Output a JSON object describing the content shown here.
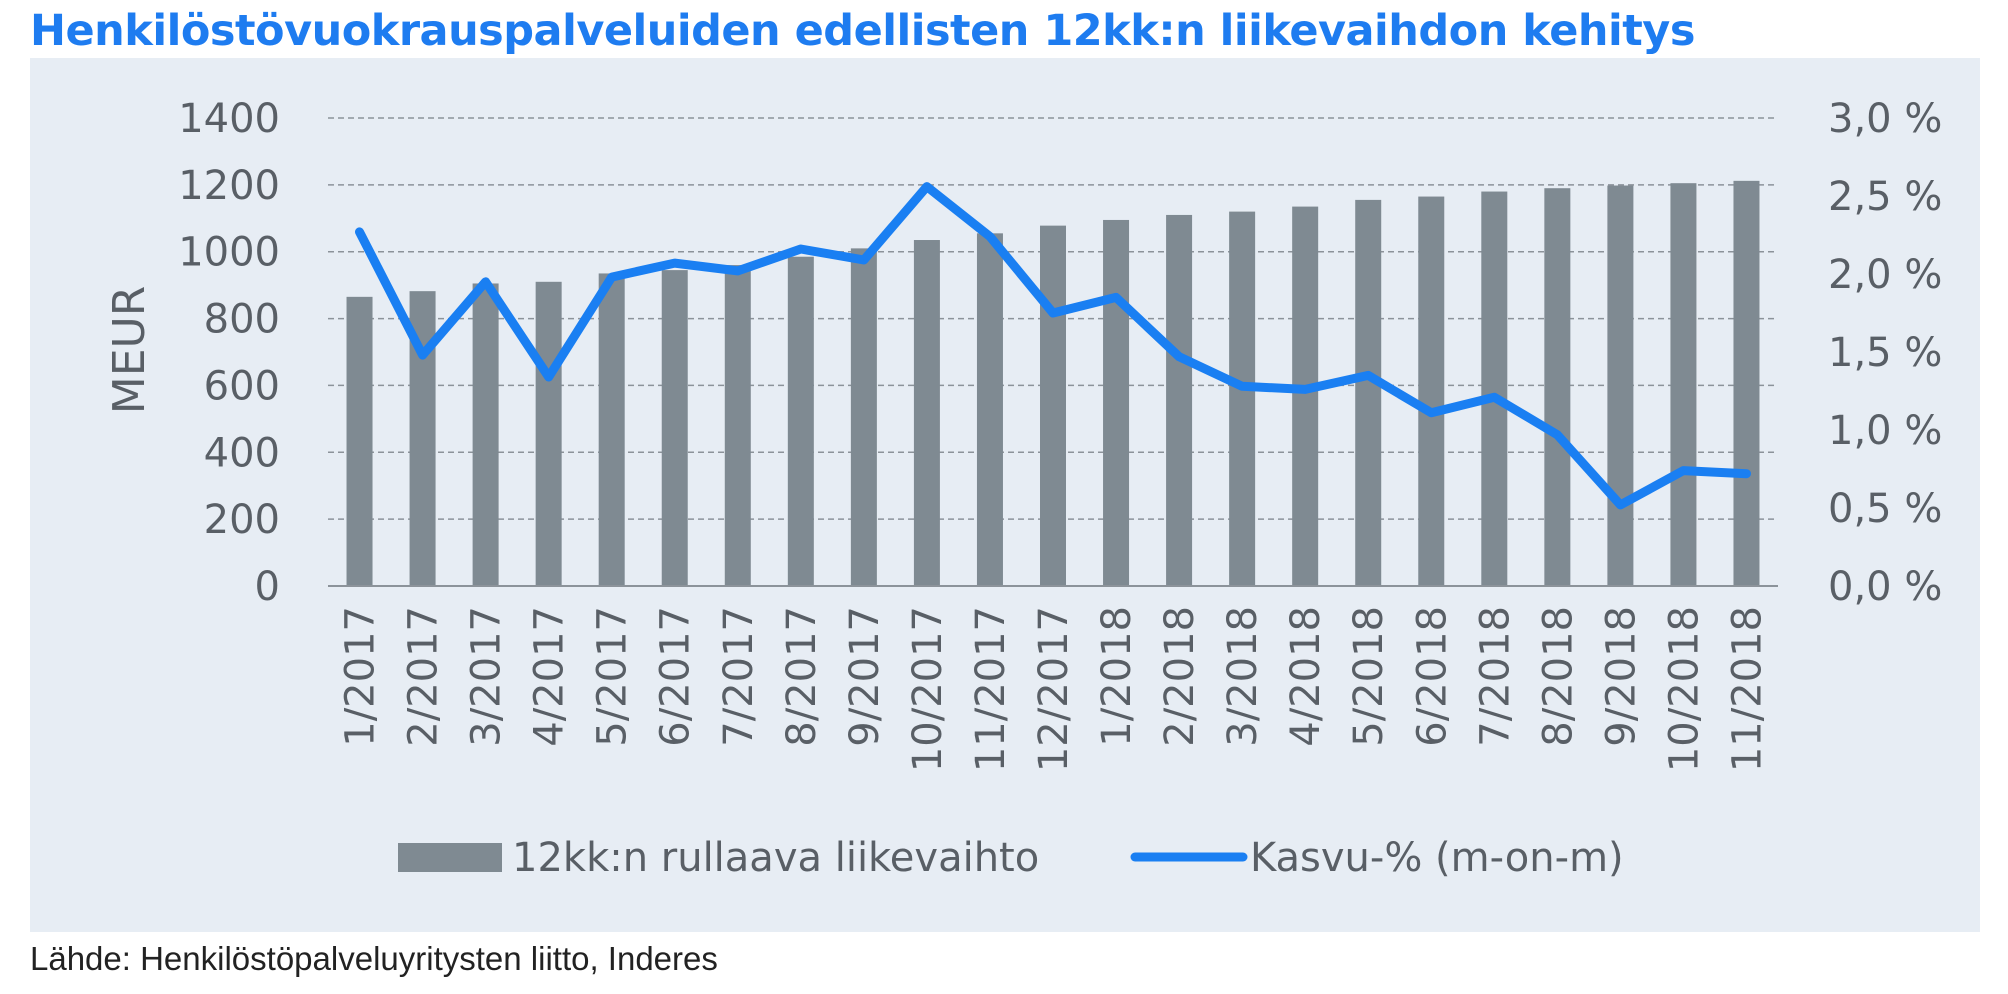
{
  "title": "Henkilöstövuokrauspalveluiden edellisten 12kk:n liikevaihdon kehitys",
  "source": "Lähde: Henkilöstöpalveluyritysten liitto, Inderes",
  "colors": {
    "bar": "#7f8a92",
    "line": "#1a7ff2",
    "panel": "#e7edf4",
    "grid": "#8c939a",
    "title": "#1e7cf0"
  },
  "chart_data": {
    "type": "bar+line",
    "title": "Henkilöstövuokrauspalveluiden edellisten 12kk:n liikevaihdon kehitys",
    "ylabel": "MEUR",
    "ylim": [
      0,
      1400
    ],
    "y_ticks": [
      "0",
      "200",
      "400",
      "600",
      "800",
      "1000",
      "1200",
      "1400"
    ],
    "y2lim": [
      0,
      3.0
    ],
    "y2_ticks": [
      "0,0 %",
      "0,5 %",
      "1,0 %",
      "1,5 %",
      "2,0 %",
      "2,5 %",
      "3,0 %"
    ],
    "categories": [
      "1/2017",
      "2/2017",
      "3/2017",
      "4/2017",
      "5/2017",
      "6/2017",
      "7/2017",
      "8/2017",
      "9/2017",
      "10/2017",
      "11/2017",
      "12/2017",
      "1/2018",
      "2/2018",
      "3/2018",
      "4/2018",
      "5/2018",
      "6/2018",
      "7/2018",
      "8/2018",
      "9/2018",
      "10/2018",
      "11/2018"
    ],
    "series": [
      {
        "name": "12kk:n rullaava liikevaihto",
        "type": "bar",
        "axis": "left",
        "values": [
          865,
          882,
          905,
          910,
          935,
          945,
          960,
          985,
          1010,
          1035,
          1055,
          1078,
          1095,
          1110,
          1120,
          1135,
          1155,
          1165,
          1180,
          1190,
          1198,
          1205,
          1212
        ]
      },
      {
        "name": "Kasvu-% (m-on-m)",
        "type": "line",
        "axis": "right",
        "values": [
          2.27,
          1.48,
          1.95,
          1.34,
          1.98,
          2.07,
          2.02,
          2.16,
          2.09,
          2.56,
          2.24,
          1.75,
          1.85,
          1.47,
          1.28,
          1.26,
          1.35,
          1.11,
          1.21,
          0.97,
          0.52,
          0.74,
          0.72
        ]
      }
    ],
    "grid": true,
    "legend_position": "bottom"
  }
}
